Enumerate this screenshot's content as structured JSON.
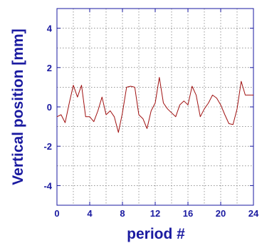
{
  "chart_data": {
    "type": "line",
    "title": "",
    "xlabel": "period #",
    "ylabel": "Vertical position [mm]",
    "xlim": [
      0,
      24
    ],
    "ylim": [
      -5,
      5
    ],
    "xticks": [
      0,
      4,
      8,
      12,
      16,
      20,
      24
    ],
    "yticks": [
      -4,
      -2,
      0,
      2,
      4
    ],
    "xtick_labels": [
      "0",
      "4",
      "8",
      "12",
      "16",
      "20",
      "24"
    ],
    "ytick_labels": [
      "-4",
      "-2",
      "0",
      "2",
      "4"
    ],
    "grid": true,
    "axis_color": "#1a1aa0",
    "line_color": "#a01010",
    "series": [
      {
        "x": [
          0.0,
          0.5,
          1.0,
          1.5,
          2.0,
          2.5,
          3.0,
          3.5,
          4.0,
          4.5,
          5.0,
          5.5,
          6.0,
          6.5,
          7.0,
          7.5,
          8.0,
          8.5,
          9.0,
          9.5,
          10.0,
          10.5,
          11.0,
          11.5,
          12.0,
          12.5,
          13.0,
          13.5,
          14.0,
          14.5,
          15.0,
          15.5,
          16.0,
          16.5,
          17.0,
          17.5,
          18.0,
          18.5,
          19.0,
          19.5,
          20.0,
          20.5,
          21.0,
          21.5,
          22.0,
          22.5,
          23.0,
          23.5,
          24.0
        ],
        "y": [
          -0.5,
          -0.4,
          -0.8,
          0.2,
          1.1,
          0.5,
          1.1,
          -0.5,
          -0.5,
          -0.75,
          -0.2,
          0.5,
          -0.4,
          -0.2,
          -0.5,
          -1.3,
          -0.3,
          1.0,
          1.05,
          1.0,
          -0.4,
          -0.6,
          -1.1,
          -0.2,
          0.2,
          1.5,
          0.2,
          -0.1,
          -0.3,
          -0.5,
          0.1,
          0.3,
          0.1,
          1.05,
          0.6,
          -0.5,
          -0.1,
          0.2,
          0.6,
          0.45,
          0.1,
          -0.4,
          -0.85,
          -0.9,
          -0.1,
          1.3,
          0.6,
          0.6,
          0.6
        ]
      }
    ]
  }
}
